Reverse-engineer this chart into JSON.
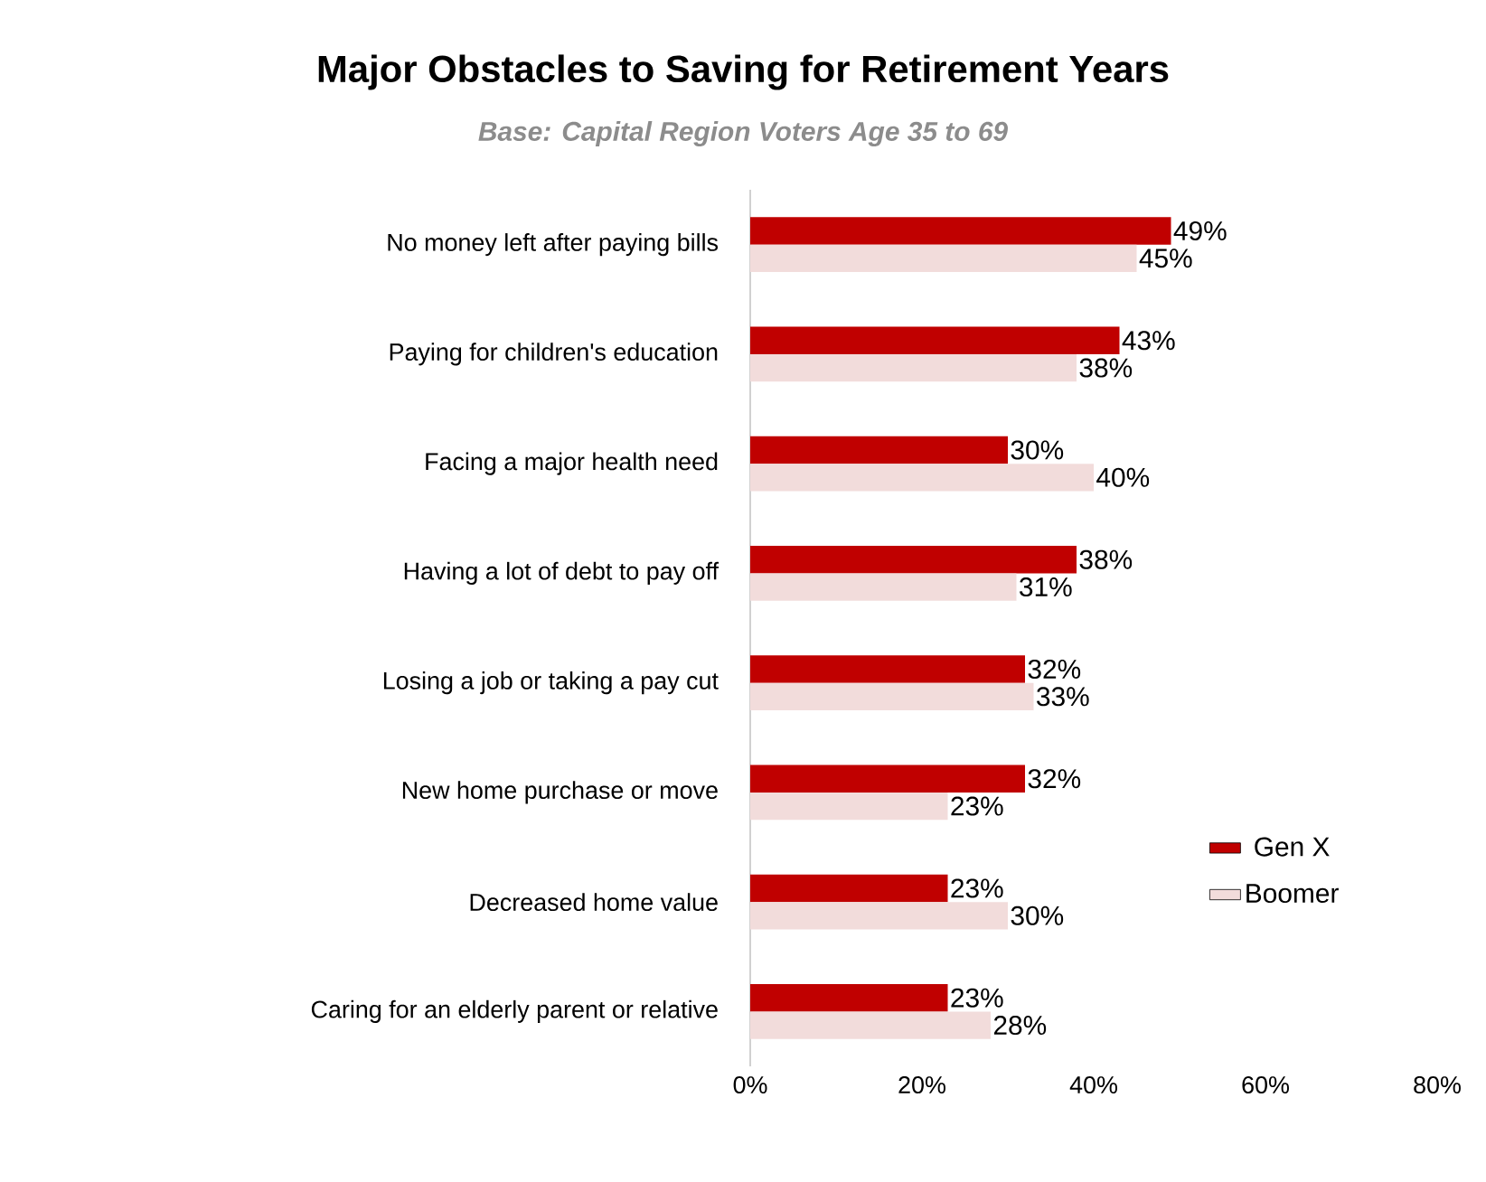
{
  "chart_data": {
    "type": "bar",
    "orientation": "horizontal",
    "title": "Major Obstacles to Saving for Retirement Years",
    "subtitle": "Base: Capital Region Voters Age 35 to 69",
    "categories": [
      "No money left after paying bills",
      "Paying for children's education",
      "Facing a major health need",
      "Having a lot of debt to pay off",
      "Losing a job or taking a pay cut",
      "New home purchase or move",
      "Decreased home value",
      "Caring for an elderly parent or relative"
    ],
    "series": [
      {
        "name": "Gen X",
        "color": "#c00000",
        "values": [
          49,
          43,
          30,
          38,
          32,
          32,
          23,
          23
        ],
        "value_labels": [
          "49%",
          "43%",
          "30%",
          "38%",
          "32%",
          "32%",
          "23%",
          "23%"
        ]
      },
      {
        "name": "Boomer",
        "color": "#f2dcdb",
        "values": [
          45,
          38,
          40,
          31,
          33,
          23,
          30,
          28
        ],
        "value_labels": [
          "45%",
          "38%",
          "40%",
          "31%",
          "33%",
          "23%",
          "30%",
          "28%"
        ]
      }
    ],
    "xlim": [
      0,
      80
    ],
    "xticks": [
      {
        "value": 0,
        "label": "0%"
      },
      {
        "value": 20,
        "label": "20%"
      },
      {
        "value": 40,
        "label": "40%"
      },
      {
        "value": 60,
        "label": "60%"
      },
      {
        "value": 80,
        "label": "80%"
      }
    ],
    "grid": false,
    "legend": "right"
  }
}
